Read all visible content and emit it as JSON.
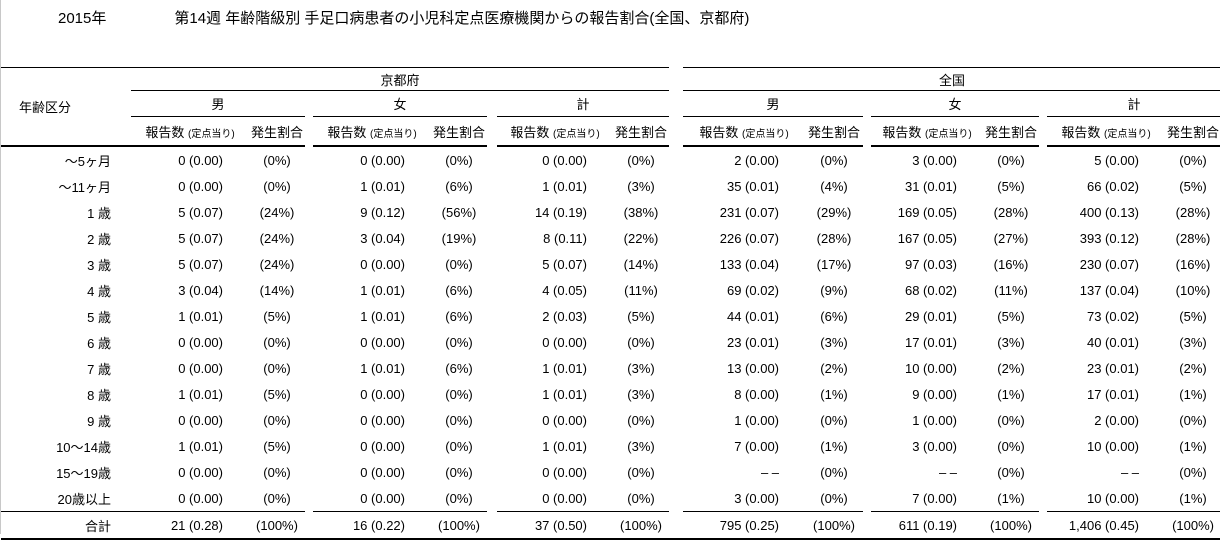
{
  "title": {
    "year": "2015年",
    "main": "第14週 年齢階級別 手足口病患者の小児科定点医療機関からの報告割合(全国、京都府)"
  },
  "table": {
    "age_header": "年齢区分",
    "groups": [
      "京都府",
      "全国"
    ],
    "subgroups": [
      "男",
      "女",
      "計"
    ],
    "col_report": "報告数",
    "col_report_sub": "(定点当り)",
    "col_rate": "発生割合",
    "rows": [
      {
        "age": "～5ヶ月",
        "cells": [
          "0 (0.00)",
          "(0%)",
          "0 (0.00)",
          "(0%)",
          "0 (0.00)",
          "(0%)",
          "2 (0.00)",
          "(0%)",
          "3 (0.00)",
          "(0%)",
          "5 (0.00)",
          "(0%)"
        ]
      },
      {
        "age": "～11ヶ月",
        "cells": [
          "0 (0.00)",
          "(0%)",
          "1 (0.01)",
          "(6%)",
          "1 (0.01)",
          "(3%)",
          "35 (0.01)",
          "(4%)",
          "31 (0.01)",
          "(5%)",
          "66 (0.02)",
          "(5%)"
        ]
      },
      {
        "age": "1 歳",
        "cells": [
          "5 (0.07)",
          "(24%)",
          "9 (0.12)",
          "(56%)",
          "14 (0.19)",
          "(38%)",
          "231 (0.07)",
          "(29%)",
          "169 (0.05)",
          "(28%)",
          "400 (0.13)",
          "(28%)"
        ]
      },
      {
        "age": "2 歳",
        "cells": [
          "5 (0.07)",
          "(24%)",
          "3 (0.04)",
          "(19%)",
          "8 (0.11)",
          "(22%)",
          "226 (0.07)",
          "(28%)",
          "167 (0.05)",
          "(27%)",
          "393 (0.12)",
          "(28%)"
        ]
      },
      {
        "age": "3 歳",
        "cells": [
          "5 (0.07)",
          "(24%)",
          "0 (0.00)",
          "(0%)",
          "5 (0.07)",
          "(14%)",
          "133 (0.04)",
          "(17%)",
          "97 (0.03)",
          "(16%)",
          "230 (0.07)",
          "(16%)"
        ]
      },
      {
        "age": "4 歳",
        "cells": [
          "3 (0.04)",
          "(14%)",
          "1 (0.01)",
          "(6%)",
          "4 (0.05)",
          "(11%)",
          "69 (0.02)",
          "(9%)",
          "68 (0.02)",
          "(11%)",
          "137 (0.04)",
          "(10%)"
        ]
      },
      {
        "age": "5 歳",
        "cells": [
          "1 (0.01)",
          "(5%)",
          "1 (0.01)",
          "(6%)",
          "2 (0.03)",
          "(5%)",
          "44 (0.01)",
          "(6%)",
          "29 (0.01)",
          "(5%)",
          "73 (0.02)",
          "(5%)"
        ]
      },
      {
        "age": "6 歳",
        "cells": [
          "0 (0.00)",
          "(0%)",
          "0 (0.00)",
          "(0%)",
          "0 (0.00)",
          "(0%)",
          "23 (0.01)",
          "(3%)",
          "17 (0.01)",
          "(3%)",
          "40 (0.01)",
          "(3%)"
        ]
      },
      {
        "age": "7 歳",
        "cells": [
          "0 (0.00)",
          "(0%)",
          "1 (0.01)",
          "(6%)",
          "1 (0.01)",
          "(3%)",
          "13 (0.00)",
          "(2%)",
          "10 (0.00)",
          "(2%)",
          "23 (0.01)",
          "(2%)"
        ]
      },
      {
        "age": "8 歳",
        "cells": [
          "1 (0.01)",
          "(5%)",
          "0 (0.00)",
          "(0%)",
          "1 (0.01)",
          "(3%)",
          "8 (0.00)",
          "(1%)",
          "9 (0.00)",
          "(1%)",
          "17 (0.01)",
          "(1%)"
        ]
      },
      {
        "age": "9 歳",
        "cells": [
          "0 (0.00)",
          "(0%)",
          "0 (0.00)",
          "(0%)",
          "0 (0.00)",
          "(0%)",
          "1 (0.00)",
          "(0%)",
          "1 (0.00)",
          "(0%)",
          "2 (0.00)",
          "(0%)"
        ]
      },
      {
        "age": "10～14歳",
        "cells": [
          "1 (0.01)",
          "(5%)",
          "0 (0.00)",
          "(0%)",
          "1 (0.01)",
          "(3%)",
          "7 (0.00)",
          "(1%)",
          "3 (0.00)",
          "(0%)",
          "10 (0.00)",
          "(1%)"
        ]
      },
      {
        "age": "15～19歳",
        "cells": [
          "0 (0.00)",
          "(0%)",
          "0 (0.00)",
          "(0%)",
          "0 (0.00)",
          "(0%)",
          "– –",
          "(0%)",
          "– –",
          "(0%)",
          "– –",
          "(0%)"
        ]
      },
      {
        "age": "20歳以上",
        "cells": [
          "0 (0.00)",
          "(0%)",
          "0 (0.00)",
          "(0%)",
          "0 (0.00)",
          "(0%)",
          "3 (0.00)",
          "(0%)",
          "7 (0.00)",
          "(1%)",
          "10 (0.00)",
          "(1%)"
        ]
      }
    ],
    "total": {
      "age": "合計",
      "cells": [
        "21 (0.28)",
        "(100%)",
        "16 (0.22)",
        "(100%)",
        "37 (0.50)",
        "(100%)",
        "795 (0.25)",
        "(100%)",
        "611 (0.19)",
        "(100%)",
        "1,406 (0.45)",
        "(100%)"
      ]
    }
  }
}
